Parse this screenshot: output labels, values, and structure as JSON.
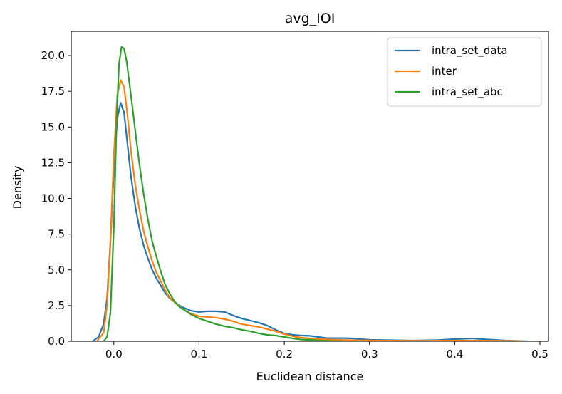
{
  "chart_data": {
    "type": "line",
    "title": "avg_IOI",
    "xlabel": "Euclidean distance",
    "ylabel": "Density",
    "xlim": [
      -0.05,
      0.51
    ],
    "ylim": [
      0.0,
      21.7
    ],
    "xticks": [
      0.0,
      0.1,
      0.2,
      0.3,
      0.4,
      0.5
    ],
    "xtick_labels": [
      "0.0",
      "0.1",
      "0.2",
      "0.3",
      "0.4",
      "0.5"
    ],
    "yticks": [
      0.0,
      2.5,
      5.0,
      7.5,
      10.0,
      12.5,
      15.0,
      17.5,
      20.0
    ],
    "ytick_labels": [
      "0.0",
      "2.5",
      "5.0",
      "7.5",
      "10.0",
      "12.5",
      "15.0",
      "17.5",
      "20.0"
    ],
    "grid": false,
    "legend_position": "top-right",
    "series": [
      {
        "name": "intra_set_data",
        "color": "#1f77b4",
        "x": [
          -0.025,
          -0.018,
          -0.012,
          -0.008,
          -0.004,
          0.0,
          0.004,
          0.008,
          0.012,
          0.016,
          0.02,
          0.025,
          0.03,
          0.035,
          0.04,
          0.045,
          0.05,
          0.055,
          0.06,
          0.065,
          0.07,
          0.08,
          0.09,
          0.1,
          0.11,
          0.12,
          0.13,
          0.14,
          0.15,
          0.16,
          0.17,
          0.18,
          0.19,
          0.2,
          0.21,
          0.22,
          0.23,
          0.24,
          0.25,
          0.26,
          0.27,
          0.28,
          0.3,
          0.35,
          0.38,
          0.4,
          0.42,
          0.44,
          0.46,
          0.485
        ],
        "values": [
          0.0,
          0.3,
          1.2,
          3.0,
          7.0,
          12.0,
          15.6,
          16.7,
          16.0,
          13.8,
          11.6,
          9.5,
          7.9,
          6.7,
          5.8,
          5.0,
          4.4,
          3.9,
          3.4,
          3.05,
          2.8,
          2.4,
          2.15,
          2.05,
          2.1,
          2.1,
          2.05,
          1.8,
          1.6,
          1.45,
          1.3,
          1.1,
          0.8,
          0.55,
          0.45,
          0.4,
          0.38,
          0.3,
          0.22,
          0.22,
          0.22,
          0.2,
          0.1,
          0.05,
          0.08,
          0.15,
          0.2,
          0.12,
          0.05,
          0.0
        ]
      },
      {
        "name": "inter",
        "color": "#ff7f0e",
        "x": [
          -0.02,
          -0.012,
          -0.008,
          -0.004,
          0.0,
          0.004,
          0.008,
          0.012,
          0.016,
          0.02,
          0.025,
          0.03,
          0.035,
          0.04,
          0.045,
          0.05,
          0.055,
          0.06,
          0.065,
          0.07,
          0.08,
          0.09,
          0.1,
          0.11,
          0.12,
          0.13,
          0.14,
          0.15,
          0.16,
          0.17,
          0.18,
          0.19,
          0.2,
          0.21,
          0.22,
          0.23,
          0.24,
          0.26,
          0.28,
          0.3,
          0.35,
          0.4,
          0.45,
          0.48
        ],
        "values": [
          0.0,
          0.6,
          2.5,
          7.0,
          13.0,
          17.2,
          18.3,
          17.8,
          15.8,
          13.4,
          11.0,
          9.2,
          7.7,
          6.6,
          5.6,
          4.8,
          4.2,
          3.6,
          3.1,
          2.8,
          2.3,
          1.95,
          1.75,
          1.7,
          1.65,
          1.55,
          1.4,
          1.2,
          1.1,
          1.0,
          0.85,
          0.7,
          0.5,
          0.35,
          0.25,
          0.2,
          0.15,
          0.1,
          0.07,
          0.05,
          0.03,
          0.05,
          0.04,
          0.0
        ]
      },
      {
        "name": "intra_set_abc",
        "color": "#2ca02c",
        "x": [
          -0.012,
          -0.008,
          -0.004,
          0.0,
          0.003,
          0.006,
          0.009,
          0.012,
          0.015,
          0.018,
          0.022,
          0.026,
          0.03,
          0.035,
          0.04,
          0.045,
          0.05,
          0.055,
          0.06,
          0.065,
          0.07,
          0.075,
          0.08,
          0.09,
          0.1,
          0.11,
          0.12,
          0.13,
          0.14,
          0.15,
          0.16,
          0.17,
          0.18,
          0.19,
          0.2,
          0.21,
          0.22,
          0.23,
          0.24,
          0.25,
          0.26,
          0.27
        ],
        "values": [
          0.0,
          0.3,
          2.0,
          8.0,
          15.0,
          19.4,
          20.6,
          20.5,
          19.6,
          18.2,
          16.3,
          14.3,
          12.4,
          10.3,
          8.5,
          7.0,
          5.9,
          4.9,
          4.0,
          3.4,
          2.9,
          2.5,
          2.3,
          1.9,
          1.6,
          1.4,
          1.2,
          1.05,
          0.95,
          0.8,
          0.7,
          0.55,
          0.45,
          0.4,
          0.3,
          0.2,
          0.12,
          0.1,
          0.05,
          0.03,
          0.01,
          0.0
        ]
      }
    ]
  }
}
